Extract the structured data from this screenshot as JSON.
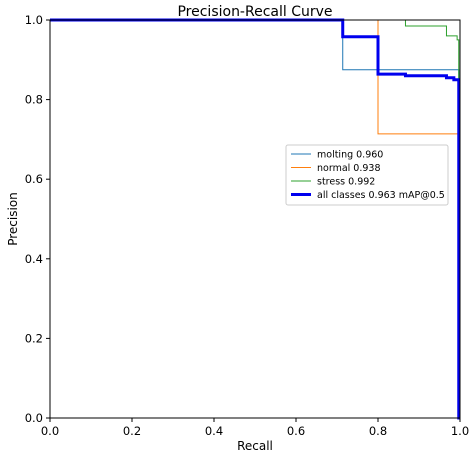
{
  "chart_data": {
    "type": "line",
    "title": "Precision-Recall Curve",
    "xlabel": "Recall",
    "ylabel": "Precision",
    "xlim": [
      0,
      1
    ],
    "ylim": [
      0,
      1
    ],
    "x_ticks": [
      "0.0",
      "0.2",
      "0.4",
      "0.6",
      "0.8",
      "1.0"
    ],
    "y_ticks": [
      "0.0",
      "0.2",
      "0.4",
      "0.6",
      "0.8",
      "1.0"
    ],
    "grid": false,
    "legend_position": "center-right",
    "series": [
      {
        "name": "molting 0.960",
        "color": "#1f77b4",
        "emphasis": false,
        "x": [
          0.0,
          0.714,
          0.714,
          0.997,
          0.997,
          1.0
        ],
        "y": [
          1.0,
          1.0,
          0.875,
          0.875,
          0.0,
          0.0
        ]
      },
      {
        "name": "normal 0.938",
        "color": "#ff7f0e",
        "emphasis": false,
        "x": [
          0.0,
          0.8,
          0.8,
          0.997,
          0.997,
          1.0
        ],
        "y": [
          1.0,
          1.0,
          0.714,
          0.714,
          0.0,
          0.0
        ]
      },
      {
        "name": "stress 0.992",
        "color": "#2ca02c",
        "emphasis": false,
        "x": [
          0.0,
          0.867,
          0.867,
          0.867,
          0.867,
          0.967,
          0.967,
          0.993,
          0.993,
          0.997,
          0.997,
          1.0
        ],
        "y": [
          1.0,
          1.0,
          0.995,
          0.995,
          0.985,
          0.985,
          0.96,
          0.96,
          0.95,
          0.95,
          0.0,
          0.0
        ]
      },
      {
        "name": "all classes 0.963 mAP@0.5",
        "color": "#0000ee",
        "emphasis": true,
        "x": [
          0.0,
          0.714,
          0.714,
          0.8,
          0.8,
          0.867,
          0.867,
          0.967,
          0.967,
          0.985,
          0.985,
          0.997,
          0.997,
          1.0
        ],
        "y": [
          1.0,
          1.0,
          0.958,
          0.958,
          0.864,
          0.864,
          0.86,
          0.86,
          0.855,
          0.855,
          0.85,
          0.85,
          0.0,
          0.0
        ]
      }
    ]
  }
}
